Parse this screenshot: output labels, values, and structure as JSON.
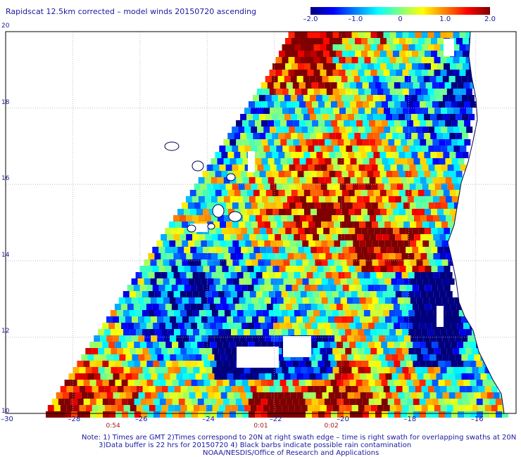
{
  "title": "Rapidscat 12.5km corrected – model winds 20150720 ascending",
  "colorbar": {
    "labels": [
      "–2.0",
      "–1.0",
      "0",
      "1.0",
      "2.0"
    ],
    "values": [
      -2.0,
      -1.0,
      0.0,
      1.0,
      2.0
    ],
    "colors": [
      "#00007f",
      "#0000ff",
      "#0080ff",
      "#00ffff",
      "#80ff80",
      "#ffff00",
      "#ff8000",
      "#ff0000",
      "#7f0000"
    ]
  },
  "map": {
    "lon_range": [
      -30,
      -14.8
    ],
    "lat_range": [
      10,
      20
    ],
    "lon_ticks": [
      {
        "value": -30,
        "label": "–30"
      },
      {
        "value": -28,
        "label": "–28"
      },
      {
        "value": -26,
        "label": "–26"
      },
      {
        "value": -24,
        "label": "–24"
      },
      {
        "value": -22,
        "label": "–22"
      },
      {
        "value": -20,
        "label": "–20"
      },
      {
        "value": -18,
        "label": "–18"
      },
      {
        "value": -16,
        "label": "–16"
      }
    ],
    "lat_ticks": [
      {
        "value": 10,
        "label": "10"
      },
      {
        "value": 12,
        "label": "12"
      },
      {
        "value": 14,
        "label": "14"
      },
      {
        "value": 16,
        "label": "16"
      },
      {
        "value": 18,
        "label": "18"
      },
      {
        "value": 20,
        "label": "20"
      }
    ],
    "pass_times": [
      {
        "lon": -26.8,
        "label": "0:54"
      },
      {
        "lon": -22.4,
        "label": "0:01"
      },
      {
        "lon": -20.3,
        "label": "0:02"
      }
    ],
    "land_color": "#ffffff",
    "coast_color": "#00004a",
    "grid_color": "#b0b0c0"
  },
  "notes": [
    "Note: 1) Times are GMT 2)Times correspond to 20N at right swath edge – time is right swath for overlapping swaths at 20N",
    "3)Data buffer is 22 hrs for 20150720 4) Black barbs indicate possible rain contamination",
    "NOAA/NESDIS/Office of Research and Applications"
  ]
}
